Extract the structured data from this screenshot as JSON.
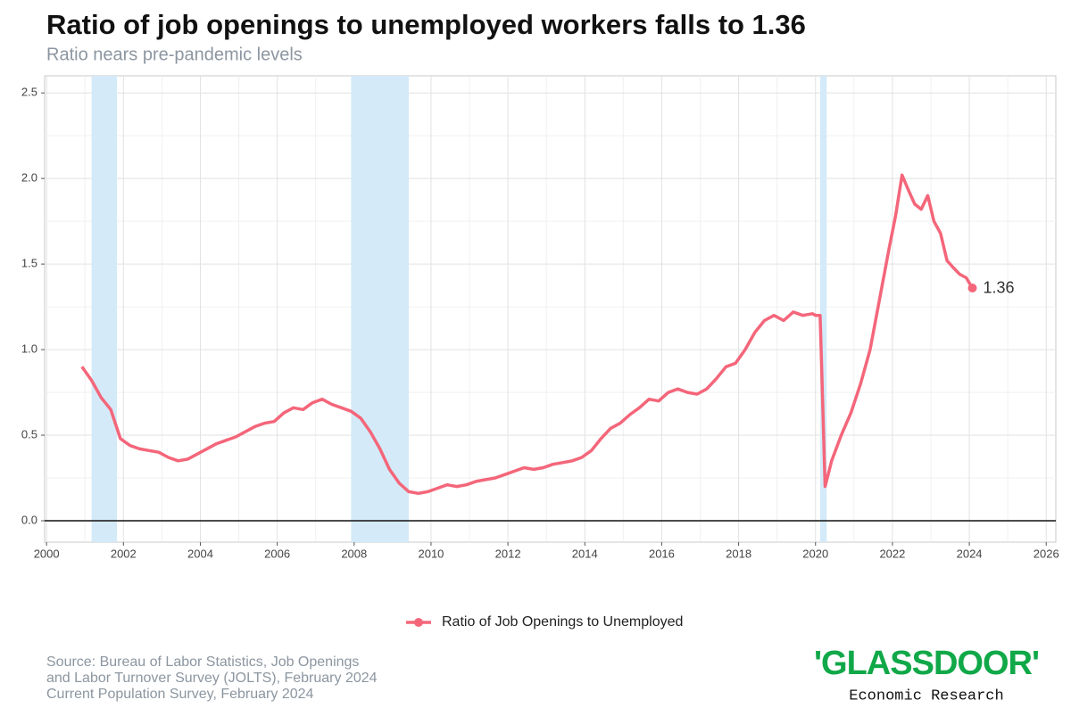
{
  "chart_data": {
    "type": "line",
    "title": "Ratio of job openings to unemployed workers falls to 1.36",
    "subtitle": "Ratio nears pre-pandemic levels",
    "xlim": [
      1999.95,
      2026.25
    ],
    "ylim": [
      -0.125,
      2.6
    ],
    "xticks": [
      2000,
      2002,
      2004,
      2006,
      2008,
      2010,
      2012,
      2014,
      2016,
      2018,
      2020,
      2022,
      2024,
      2026
    ],
    "yticks": [
      {
        "value": 0,
        "label": "0.0"
      },
      0.5,
      {
        "value": 1,
        "label": "1.0"
      },
      1.5,
      {
        "value": 2,
        "label": "2.0"
      },
      2.5
    ],
    "grid": true,
    "minor_grid": true,
    "hline": 0,
    "recessions": [
      [
        2001.17,
        2001.83
      ],
      [
        2007.92,
        2009.42
      ],
      [
        2020.12,
        2020.29
      ]
    ],
    "recession_color": "#d4eaf8",
    "legend": "bottom",
    "series": [
      {
        "name": "Ratio of Job Openings to Unemployed",
        "color": "#f4667a",
        "end_label": true,
        "x": [
          2000.92,
          2001.17,
          2001.42,
          2001.67,
          2001.92,
          2002.17,
          2002.42,
          2002.67,
          2002.92,
          2003.17,
          2003.42,
          2003.67,
          2003.92,
          2004.17,
          2004.42,
          2004.67,
          2004.92,
          2005.17,
          2005.42,
          2005.67,
          2005.92,
          2006.17,
          2006.42,
          2006.67,
          2006.92,
          2007.17,
          2007.42,
          2007.67,
          2007.92,
          2008.17,
          2008.42,
          2008.67,
          2008.92,
          2009.17,
          2009.42,
          2009.67,
          2009.92,
          2010.17,
          2010.42,
          2010.67,
          2010.92,
          2011.17,
          2011.42,
          2011.67,
          2011.92,
          2012.17,
          2012.42,
          2012.67,
          2012.92,
          2013.17,
          2013.42,
          2013.67,
          2013.92,
          2014.17,
          2014.42,
          2014.67,
          2014.92,
          2015.17,
          2015.42,
          2015.67,
          2015.92,
          2016.17,
          2016.42,
          2016.67,
          2016.92,
          2017.17,
          2017.42,
          2017.67,
          2017.92,
          2018.17,
          2018.42,
          2018.67,
          2018.92,
          2019.17,
          2019.42,
          2019.67,
          2019.92,
          2020.0,
          2020.12,
          2020.25,
          2020.42,
          2020.67,
          2020.92,
          2021.17,
          2021.42,
          2021.67,
          2021.92,
          2022.08,
          2022.25,
          2022.42,
          2022.58,
          2022.75,
          2022.92,
          2023.08,
          2023.25,
          2023.42,
          2023.58,
          2023.75,
          2023.92,
          2024.08
        ],
        "values": [
          0.9,
          0.82,
          0.72,
          0.65,
          0.48,
          0.44,
          0.42,
          0.41,
          0.4,
          0.37,
          0.35,
          0.36,
          0.39,
          0.42,
          0.45,
          0.47,
          0.49,
          0.52,
          0.55,
          0.57,
          0.58,
          0.63,
          0.66,
          0.65,
          0.69,
          0.71,
          0.68,
          0.66,
          0.64,
          0.6,
          0.52,
          0.42,
          0.3,
          0.22,
          0.17,
          0.16,
          0.17,
          0.19,
          0.21,
          0.2,
          0.21,
          0.23,
          0.24,
          0.25,
          0.27,
          0.29,
          0.31,
          0.3,
          0.31,
          0.33,
          0.34,
          0.35,
          0.37,
          0.41,
          0.48,
          0.54,
          0.57,
          0.62,
          0.66,
          0.71,
          0.7,
          0.75,
          0.77,
          0.75,
          0.74,
          0.77,
          0.83,
          0.9,
          0.92,
          1.0,
          1.1,
          1.17,
          1.2,
          1.17,
          1.22,
          1.2,
          1.21,
          1.2,
          1.2,
          0.2,
          0.35,
          0.5,
          0.63,
          0.8,
          1.0,
          1.3,
          1.6,
          1.78,
          2.02,
          1.93,
          1.85,
          1.82,
          1.9,
          1.75,
          1.68,
          1.52,
          1.48,
          1.44,
          1.42,
          1.36
        ]
      }
    ]
  },
  "footer": {
    "source": [
      "Source: Bureau of Labor Statistics, Job Openings",
      "and Labor Turnover Survey (JOLTS), February 2024",
      "Current Population Survey, February 2024"
    ],
    "logo": "'GLASSDOOR'",
    "logo_subtitle": "Economic Research"
  }
}
